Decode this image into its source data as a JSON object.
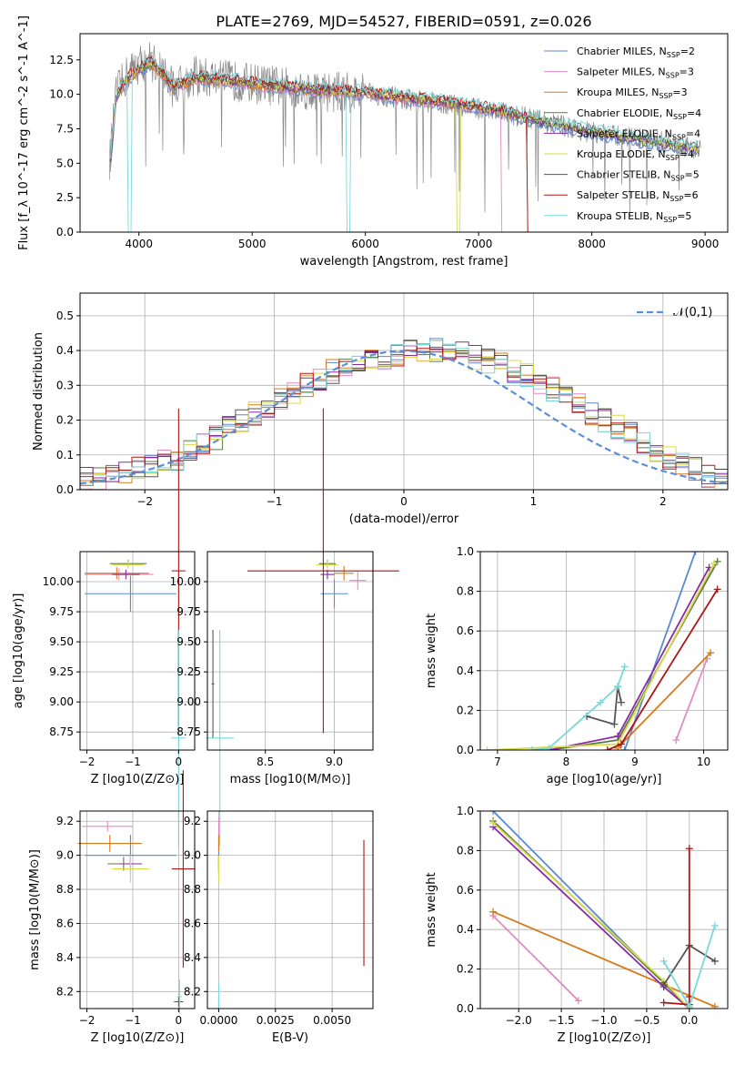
{
  "series_names": [
    "Chabrier MILES",
    "Salpeter MILES",
    "Kroupa MILES",
    "Chabrier ELODIE",
    "Salpeter ELODIE",
    "Kroupa ELODIE",
    "Chabrier STELIB",
    "Salpeter STELIB",
    "Kroupa STELIB"
  ],
  "nssp": [
    2,
    3,
    3,
    4,
    4,
    4,
    5,
    6,
    5
  ],
  "colors": [
    "#5b87d6",
    "#e68abf",
    "#d77a18",
    "#5a7a4a",
    "#8a2aa2",
    "#d8dc48",
    "#555555",
    "#b01515",
    "#78d8dc"
  ],
  "chart_data": [
    {
      "type": "line",
      "title": "PLATE=2769, MJD=54527, FIBERID=0591, z=0.026",
      "xlabel": "wavelength [Angstrom, rest frame]",
      "ylabel": "Flux [f_λ 10^-17 erg cm^-2 s^-1 A^-1]",
      "xlim": [
        3480,
        9200
      ],
      "ylim": [
        0,
        14.4
      ],
      "xticks": [
        4000,
        5000,
        6000,
        7000,
        8000,
        9000
      ],
      "yticks": [
        0.0,
        2.5,
        5.0,
        7.5,
        10.0,
        12.5
      ],
      "legend_position": "top-right",
      "model_x": [
        3750,
        3800,
        3900,
        4000,
        4100,
        4200,
        4300,
        4500,
        4800,
        5200,
        5600,
        6000,
        6400,
        6800,
        7200,
        7400,
        7800,
        8200,
        8600,
        8950
      ],
      "model_y": [
        5.2,
        9.8,
        11.2,
        11.8,
        12.3,
        11.6,
        10.5,
        11.2,
        11.0,
        10.6,
        10.3,
        10.1,
        9.7,
        9.3,
        8.8,
        8.3,
        7.6,
        7.0,
        6.4,
        6.0
      ],
      "data_x": [
        3740,
        3800,
        3900,
        4000,
        4100,
        4200,
        4300,
        4500,
        4800,
        5200,
        5600,
        6000,
        6400,
        6800,
        7200,
        7600,
        8000,
        8400,
        8800,
        8960
      ],
      "data_y": [
        5.0,
        10.0,
        11.5,
        12.2,
        12.5,
        11.8,
        10.5,
        11.3,
        11.0,
        10.6,
        10.2,
        10.1,
        9.6,
        9.2,
        8.7,
        8.0,
        7.2,
        6.8,
        6.3,
        6.0
      ]
    },
    {
      "type": "bar",
      "xlabel": "(data-model)/error",
      "ylabel": "Normed distribution",
      "xlim": [
        -2.5,
        2.5
      ],
      "ylim": [
        0,
        0.565
      ],
      "xticks": [
        -2,
        -1,
        0,
        1,
        2
      ],
      "yticks": [
        0.0,
        0.1,
        0.2,
        0.3,
        0.4,
        0.5
      ],
      "legend_entry": "𝒩(0,1)",
      "legend_position": "top-right",
      "bin_width": 0.1,
      "bin_start": -2.5,
      "base_values": [
        0.03,
        0.03,
        0.04,
        0.05,
        0.06,
        0.07,
        0.08,
        0.09,
        0.11,
        0.13,
        0.15,
        0.18,
        0.2,
        0.22,
        0.24,
        0.26,
        0.28,
        0.3,
        0.32,
        0.34,
        0.35,
        0.36,
        0.37,
        0.38,
        0.39,
        0.4,
        0.4,
        0.4,
        0.39,
        0.39,
        0.38,
        0.37,
        0.36,
        0.34,
        0.33,
        0.31,
        0.29,
        0.27,
        0.25,
        0.22,
        0.2,
        0.18,
        0.16,
        0.13,
        0.11,
        0.09,
        0.07,
        0.06,
        0.04,
        0.03
      ]
    },
    {
      "type": "scatter",
      "xlabel": "Z [log10(Z/Z⊙)]",
      "ylabel": "age  [log10(age/yr)]",
      "xlim": [
        -2.15,
        0.35
      ],
      "ylim": [
        8.6,
        10.25
      ],
      "xticks": [
        -2,
        -1,
        0
      ],
      "yticks": [
        8.75,
        9.0,
        9.25,
        9.5,
        9.75,
        10.0
      ],
      "points": [
        [
          -1.05,
          9.9,
          1.0,
          0.15
        ],
        [
          -1.3,
          10.06,
          0.75,
          0.05
        ],
        [
          -1.35,
          10.07,
          0.7,
          0.05
        ],
        [
          -1.1,
          10.15,
          0.4,
          0.03
        ],
        [
          -1.15,
          10.06,
          0.3,
          0.04
        ],
        [
          -1.1,
          10.14,
          0.35,
          0.03
        ],
        [
          0.0,
          9.2,
          0.01,
          0.4
        ],
        [
          0.0,
          10.09,
          0.15,
          1.35
        ],
        [
          0.0,
          8.7,
          0.15,
          0.9
        ]
      ]
    },
    {
      "type": "scatter",
      "xlabel": "mass [log10(M/M⊙)]",
      "ylabel": "",
      "xlim": [
        8.08,
        9.28
      ],
      "ylim": [
        8.6,
        10.25
      ],
      "xticks": [
        8.5,
        9.0
      ],
      "yticks": [
        8.75,
        9.0,
        9.25,
        9.5,
        9.75,
        10.0
      ],
      "points": [
        [
          9.0,
          9.9,
          0.1,
          0.12
        ],
        [
          9.17,
          10.01,
          0.06,
          0.08
        ],
        [
          9.07,
          10.07,
          0.07,
          0.06
        ],
        [
          8.95,
          10.15,
          0.06,
          0.03
        ],
        [
          8.95,
          10.06,
          0.05,
          0.04
        ],
        [
          8.95,
          10.14,
          0.08,
          0.03
        ],
        [
          8.12,
          9.15,
          0.01,
          0.45
        ],
        [
          8.92,
          10.09,
          0.55,
          1.35
        ],
        [
          8.17,
          8.7,
          0.1,
          0.9
        ]
      ]
    },
    {
      "type": "scatter",
      "xlabel": "age  [log10(age/yr)]",
      "ylabel": "mass weight",
      "xlim": [
        6.75,
        10.35
      ],
      "ylim": [
        0,
        1.0
      ],
      "xticks": [
        7,
        8,
        9,
        10
      ],
      "yticks": [
        0.0,
        0.2,
        0.4,
        0.6,
        0.8,
        1.0
      ],
      "series": [
        {
          "x": [
            8.85,
            9.88
          ],
          "y": [
            0.0,
            1.0
          ]
        },
        {
          "x": [
            9.6,
            10.05
          ],
          "y": [
            0.05,
            0.46
          ]
        },
        {
          "x": [
            8.75,
            10.1
          ],
          "y": [
            0.01,
            0.49
          ]
        },
        {
          "x": [
            7.75,
            8.75,
            10.2
          ],
          "y": [
            0.0,
            0.05,
            0.95
          ]
        },
        {
          "x": [
            7.75,
            8.75,
            10.08
          ],
          "y": [
            0.0,
            0.07,
            0.92
          ]
        },
        {
          "x": [
            6.85,
            8.75,
            10.15
          ],
          "y": [
            0.0,
            0.03,
            0.94
          ]
        },
        {
          "x": [
            8.3,
            8.7,
            8.75,
            8.8
          ],
          "y": [
            0.17,
            0.13,
            0.32,
            0.24
          ]
        },
        {
          "x": [
            8.6,
            8.8,
            10.2
          ],
          "y": [
            0.0,
            0.03,
            0.81
          ]
        },
        {
          "x": [
            7.5,
            7.75,
            8.5,
            8.75,
            8.85
          ],
          "y": [
            0.0,
            0.01,
            0.24,
            0.32,
            0.42
          ]
        }
      ]
    },
    {
      "type": "scatter",
      "xlabel": "Z [log10(Z/Z⊙)]",
      "ylabel": "mass [log10(M/M⊙)]",
      "xlim": [
        -2.15,
        0.35
      ],
      "ylim": [
        8.1,
        9.26
      ],
      "xticks": [
        -2,
        -1,
        0
      ],
      "yticks": [
        8.2,
        8.4,
        8.6,
        8.8,
        9.0,
        9.2
      ],
      "points": [
        [
          -1.05,
          9.0,
          1.0,
          0.12
        ],
        [
          -1.55,
          9.17,
          0.55,
          0.03
        ],
        [
          -1.5,
          9.07,
          0.7,
          0.05
        ],
        [
          -1.2,
          8.95,
          0.35,
          0.04
        ],
        [
          -1.05,
          8.95,
          0.25,
          0.05
        ],
        [
          -1.05,
          8.92,
          0.4,
          0.08
        ],
        [
          0.0,
          8.14,
          0.1,
          0.03
        ],
        [
          0.1,
          8.92,
          0.25,
          0.58
        ],
        [
          0.02,
          8.17,
          0.05,
          0.1
        ]
      ]
    },
    {
      "type": "scatter",
      "xlabel": "E(B-V)",
      "ylabel": "",
      "xlim": [
        -0.0005,
        0.0068
      ],
      "ylim": [
        8.1,
        9.26
      ],
      "xticks": [
        0.0,
        0.0025,
        0.005
      ],
      "yticks": [
        8.2,
        8.4,
        8.6,
        8.8,
        9.0,
        9.2
      ],
      "points": [
        [
          0.0,
          9.0,
          0.0,
          0.12
        ],
        [
          0.0,
          9.17,
          0.0,
          0.05
        ],
        [
          0.0,
          9.07,
          0.0,
          0.05
        ],
        [
          0.0,
          8.95,
          0.0,
          0.05
        ],
        [
          0.0,
          8.95,
          0.0,
          0.05
        ],
        [
          0.0,
          8.92,
          0.0,
          0.08
        ],
        [
          0.0,
          8.14,
          0.0,
          0.03
        ],
        [
          0.0064,
          8.72,
          0.0,
          0.37
        ],
        [
          0.0,
          8.17,
          0.0,
          0.08
        ]
      ]
    },
    {
      "type": "scatter",
      "xlabel": "Z [log10(Z/Z⊙)]",
      "ylabel": "mass weight",
      "xlim": [
        -2.45,
        0.45
      ],
      "ylim": [
        0,
        1.0
      ],
      "xticks": [
        -2.0,
        -1.5,
        -1.0,
        -0.5,
        0.0
      ],
      "yticks": [
        0.0,
        0.2,
        0.4,
        0.6,
        0.8,
        1.0
      ],
      "series": [
        {
          "x": [
            -2.3,
            0.0
          ],
          "y": [
            1.0,
            0.0
          ]
        },
        {
          "x": [
            -2.3,
            -1.3
          ],
          "y": [
            0.47,
            0.04
          ]
        },
        {
          "x": [
            -2.3,
            0.3
          ],
          "y": [
            0.49,
            0.01
          ]
        },
        {
          "x": [
            -2.3,
            -0.3,
            0.0
          ],
          "y": [
            0.95,
            0.13,
            0.0
          ]
        },
        {
          "x": [
            -2.3,
            -0.3,
            0.0
          ],
          "y": [
            0.92,
            0.11,
            0.0
          ]
        },
        {
          "x": [
            -2.3,
            -0.3,
            0.0
          ],
          "y": [
            0.94,
            0.14,
            0.0
          ]
        },
        {
          "x": [
            -0.3,
            0.0,
            0.3
          ],
          "y": [
            0.12,
            0.32,
            0.24
          ]
        },
        {
          "x": [
            -0.3,
            0.0,
            0.0,
            0.0
          ],
          "y": [
            0.03,
            0.02,
            0.06,
            0.81
          ]
        },
        {
          "x": [
            -0.3,
            0.0,
            0.3
          ],
          "y": [
            0.24,
            0.01,
            0.42
          ]
        }
      ]
    }
  ]
}
